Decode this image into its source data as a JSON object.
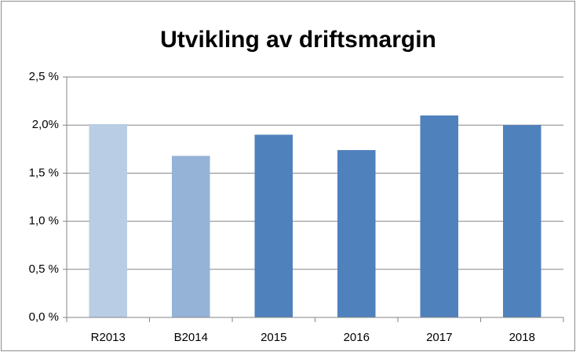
{
  "chart_data": {
    "type": "bar",
    "title": "Utvikling av driftsmargin",
    "categories": [
      "R2013",
      "B2014",
      "2015",
      "2016",
      "2017",
      "2018"
    ],
    "values": [
      2.01,
      1.68,
      1.9,
      1.74,
      2.1,
      2.0
    ],
    "colors": [
      "#b9cde5",
      "#95b3d7",
      "#4f81bd",
      "#4f81bd",
      "#4f81bd",
      "#4f81bd"
    ],
    "ylim": [
      0,
      2.5
    ],
    "yticks": [
      {
        "value": 0,
        "label": "0,0 %"
      },
      {
        "value": 0.5,
        "label": "0,5 %"
      },
      {
        "value": 1,
        "label": "1,0 %"
      },
      {
        "value": 1.5,
        "label": "1,5 %"
      },
      {
        "value": 2,
        "label": "2,0%"
      },
      {
        "value": 2.5,
        "label": "2,5 %"
      }
    ],
    "grid": true
  }
}
